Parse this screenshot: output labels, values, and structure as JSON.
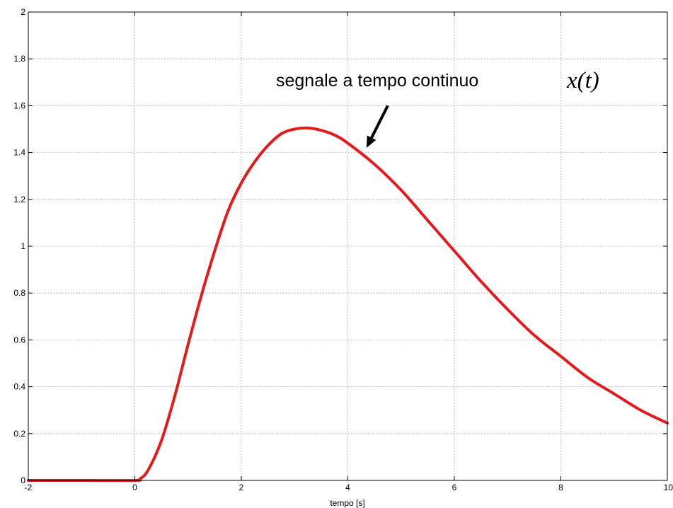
{
  "chart_data": {
    "type": "line",
    "title": "",
    "xlabel": "tempo [s]",
    "ylabel": "",
    "xlim": [
      -2,
      10
    ],
    "ylim": [
      0,
      2
    ],
    "grid": true,
    "x_ticks": [
      -2,
      0,
      2,
      4,
      6,
      8,
      10
    ],
    "y_ticks": [
      0,
      0.2,
      0.4,
      0.6,
      0.8,
      1,
      1.2,
      1.4,
      1.6,
      1.8,
      2
    ],
    "x_tick_labels": [
      "-2",
      "0",
      "2",
      "4",
      "6",
      "8",
      "10"
    ],
    "y_tick_labels": [
      "0",
      "0.2",
      "0.4",
      "0.6",
      "0.8",
      "1",
      "1.2",
      "1.4",
      "1.6",
      "1.8",
      "2"
    ],
    "series": [
      {
        "color": "#e41a1c",
        "x": [
          -2,
          -1,
          0,
          0.1,
          0.25,
          0.5,
          0.75,
          1,
          1.25,
          1.5,
          1.75,
          2,
          2.25,
          2.5,
          2.75,
          3,
          3.25,
          3.5,
          3.75,
          4,
          4.5,
          5,
          5.5,
          6,
          6.5,
          7,
          7.5,
          8,
          8.5,
          9,
          9.5,
          10
        ],
        "y": [
          0,
          0,
          0,
          0.007,
          0.044,
          0.17,
          0.36,
          0.58,
          0.79,
          0.98,
          1.15,
          1.27,
          1.36,
          1.43,
          1.48,
          1.5,
          1.505,
          1.495,
          1.475,
          1.44,
          1.35,
          1.24,
          1.11,
          0.98,
          0.85,
          0.73,
          0.62,
          0.53,
          0.44,
          0.37,
          0.3,
          0.245
        ]
      }
    ],
    "annotation": {
      "text": "segnale a tempo continuo",
      "math": "x(t)",
      "arrow_from": [
        4.75,
        1.6
      ],
      "arrow_to": [
        4.35,
        1.42
      ]
    }
  }
}
